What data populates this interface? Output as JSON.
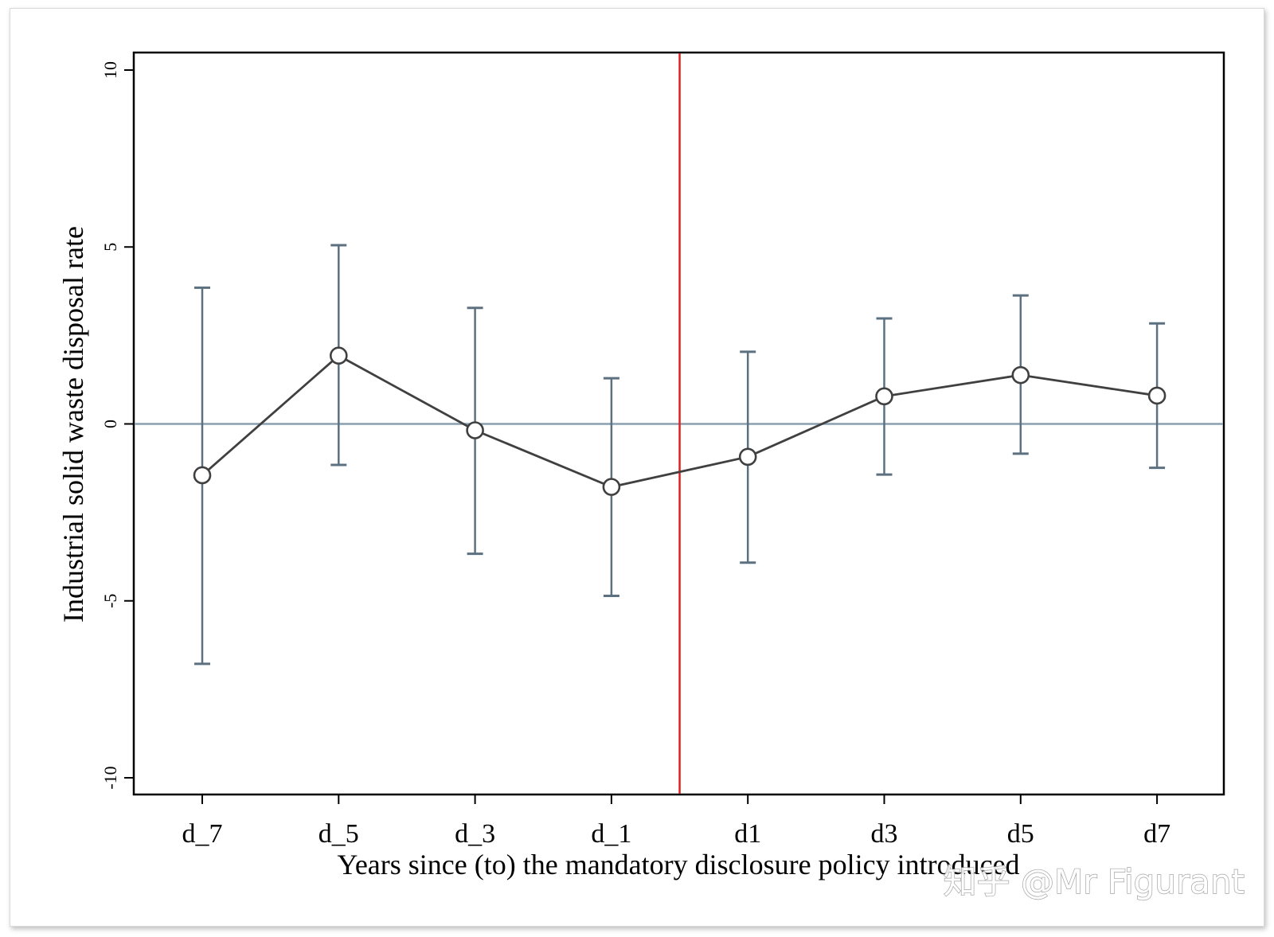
{
  "chart_data": {
    "type": "line",
    "title": "",
    "xlabel": "Years since (to) the mandatory disclosure policy introduced",
    "ylabel": "Industrial solid waste disposal rate",
    "categories": [
      "d_7",
      "d_5",
      "d_3",
      "d_1",
      "d1",
      "d3",
      "d5",
      "d7"
    ],
    "series": [
      {
        "values": [
          -1.45,
          1.93,
          -0.18,
          -1.78,
          -0.93,
          0.78,
          1.38,
          0.8
        ],
        "ci_lower": [
          -6.78,
          -1.16,
          -3.67,
          -4.86,
          -3.92,
          -1.43,
          -0.84,
          -1.24
        ],
        "ci_upper": [
          3.85,
          5.05,
          3.28,
          1.29,
          2.04,
          2.98,
          3.63,
          2.84
        ],
        "marker": "hollow-circle",
        "color": "#404040"
      }
    ],
    "ylim": [
      -10.5,
      10.5
    ],
    "yticks": [
      "-10",
      "-5",
      "0",
      "5",
      "10"
    ],
    "reference_lines": {
      "horizontal_y": 0,
      "horizontal_color": "#8aa0b0",
      "vertical_between": [
        "d_1",
        "d1"
      ],
      "vertical_color": "#e02020"
    },
    "errorbar_color": "#5c7080",
    "grid": false,
    "legend": "none"
  },
  "watermark": {
    "text": "知乎 @Mr Figurant"
  }
}
